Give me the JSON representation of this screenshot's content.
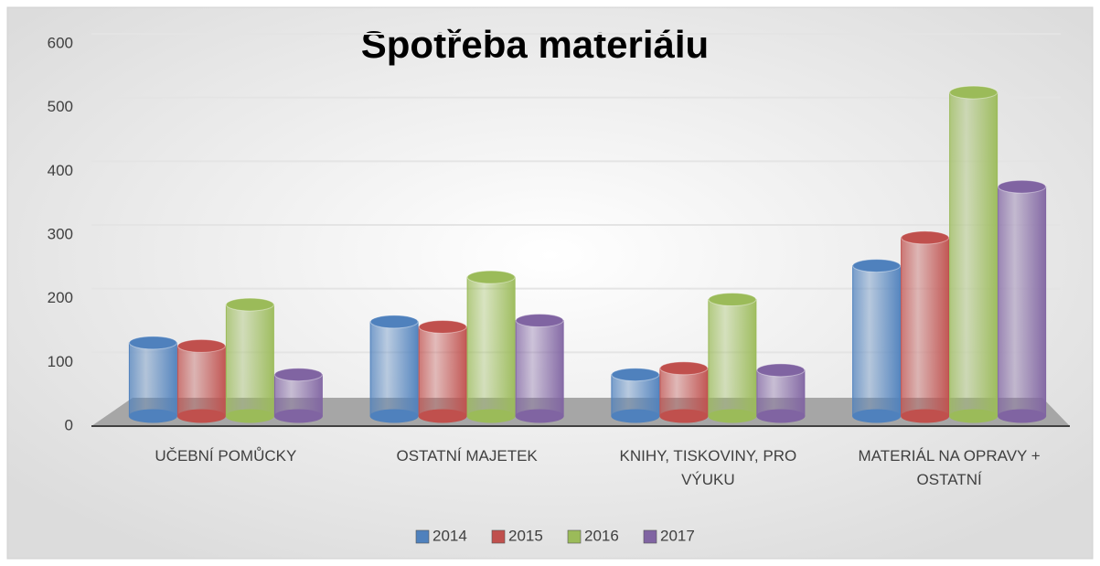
{
  "chart_data": {
    "type": "bar",
    "title": "Spotřeba materiálu",
    "categories": [
      "UČEBNÍ POMŮCKY",
      "OSTATNÍ MAJETEK",
      "KNIHY, TISKOVINY, PRO VÝUKU",
      "MATERIÁL NA OPRAVY + OSTATNÍ"
    ],
    "series": [
      {
        "name": "2014",
        "color": "#4f81bd",
        "values": [
          115,
          148,
          65,
          236
        ]
      },
      {
        "name": "2015",
        "color": "#c0504d",
        "values": [
          110,
          140,
          75,
          280
        ]
      },
      {
        "name": "2016",
        "color": "#9bbb59",
        "values": [
          175,
          218,
          183,
          508
        ]
      },
      {
        "name": "2017",
        "color": "#8064a2",
        "values": [
          65,
          150,
          72,
          360
        ]
      }
    ],
    "ylim": [
      0,
      600
    ],
    "yticks": [
      0,
      100,
      200,
      300,
      400,
      500,
      600
    ],
    "grid": true,
    "legend": "bottom"
  }
}
